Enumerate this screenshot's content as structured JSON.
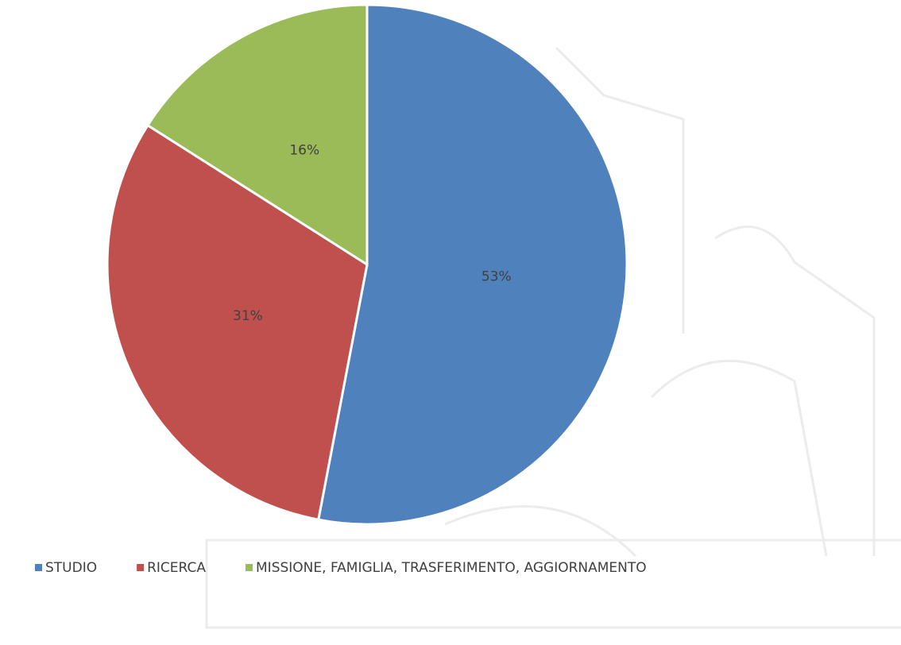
{
  "chart_data": {
    "type": "pie",
    "categories": [
      "STUDIO",
      "RICERCA",
      "MISSIONE, FAMIGLIA, TRASFERIMENTO, AGGIORNAMENTO"
    ],
    "values": [
      53,
      31,
      16
    ],
    "value_labels": [
      "53%",
      "31%",
      "16%"
    ],
    "colors": [
      "#4f81bd",
      "#c0504d",
      "#9bbb59"
    ],
    "legend": "bottom"
  }
}
